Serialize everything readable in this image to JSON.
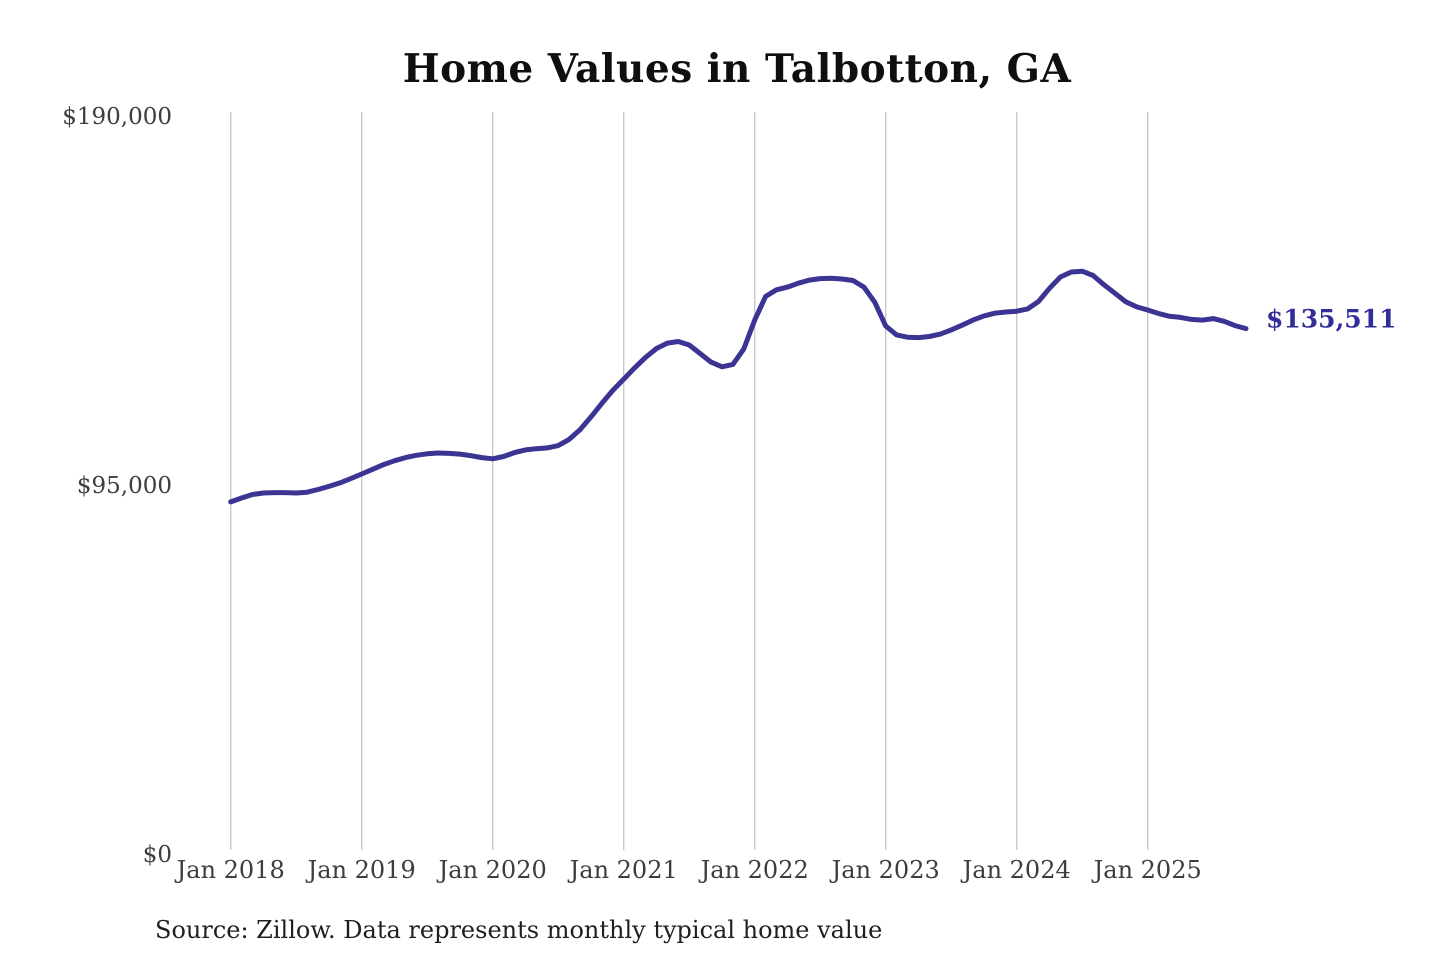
{
  "title": "Home Values in Talbotton, GA",
  "source_note": "Source: Zillow. Data represents monthly typical home value",
  "end_label": "$135,511",
  "colors": {
    "line": "#3b3493",
    "grid": "#c9c9c9",
    "tick_text": "#3d3d3d",
    "title_text": "#0f0f0f",
    "end_label_text": "#322e99",
    "background": "#ffffff"
  },
  "chart_data": {
    "type": "line",
    "title": "Home Values in Talbotton, GA",
    "xlabel": "",
    "ylabel": "",
    "grid": "vertical-only",
    "legend": "none",
    "x_axis": {
      "tick_labels": [
        "Jan 2018",
        "Jan 2019",
        "Jan 2020",
        "Jan 2021",
        "Jan 2022",
        "Jan 2023",
        "Jan 2024",
        "Jan 2025"
      ],
      "start_month": "Jan 2018",
      "end_month": "Oct 2025",
      "interval": "monthly"
    },
    "y_axis": {
      "tick_labels": [
        "$0",
        "$95,000",
        "$190,000"
      ],
      "tick_values": [
        0,
        95000,
        190000
      ],
      "range": [
        0,
        190000
      ],
      "unit": "USD"
    },
    "series": [
      {
        "name": "Monthly typical home value",
        "final_value": 135511,
        "final_value_label": "$135,511",
        "values": [
          90900,
          91900,
          92800,
          93200,
          93300,
          93300,
          93200,
          93400,
          94100,
          94900,
          95800,
          96900,
          98100,
          99300,
          100500,
          101500,
          102300,
          102900,
          103300,
          103500,
          103400,
          103200,
          102800,
          102300,
          102000,
          102600,
          103600,
          104300,
          104600,
          104800,
          105400,
          107000,
          109500,
          112800,
          116300,
          119600,
          122500,
          125400,
          128100,
          130400,
          131800,
          132200,
          131300,
          129100,
          126900,
          125700,
          126300,
          130300,
          137700,
          143800,
          145500,
          146200,
          147200,
          148000,
          148400,
          148500,
          148300,
          147900,
          146200,
          142300,
          136200,
          133900,
          133300,
          133200,
          133500,
          134100,
          135200,
          136400,
          137700,
          138800,
          139500,
          139800,
          140000,
          140600,
          142500,
          145900,
          148800,
          150100,
          150300,
          149200,
          146800,
          144600,
          142400,
          141100,
          140300,
          139400,
          138700,
          138400,
          137900,
          137700,
          138100,
          137400,
          136300,
          135511
        ]
      }
    ]
  }
}
